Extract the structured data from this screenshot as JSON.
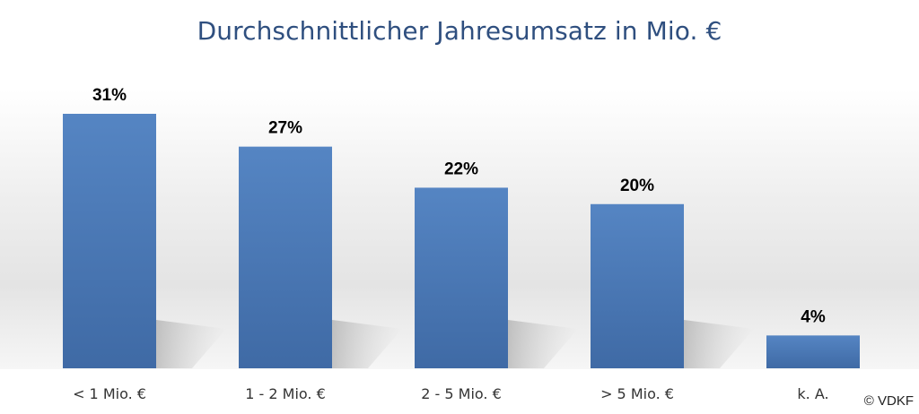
{
  "chart_data": {
    "type": "bar",
    "title": "Durchschnittlicher Jahresumsatz in Mio. €",
    "categories": [
      "< 1 Mio. €",
      "1 - 2 Mio. €",
      "2 - 5 Mio. €",
      "> 5 Mio. €",
      "k. A."
    ],
    "values": [
      31,
      27,
      22,
      20,
      4
    ],
    "value_labels": [
      "31%",
      "27%",
      "22%",
      "20%",
      "4%"
    ],
    "unit": "%",
    "ylim": [
      0,
      31
    ],
    "xlabel": "",
    "ylabel": "",
    "grid": false,
    "legend": "none",
    "colors": {
      "bar_top": "#5585c3",
      "bar_bottom": "#3f6aa5",
      "title": "#2f4f7f",
      "label": "#000000"
    }
  },
  "copyright": "© VDKF"
}
